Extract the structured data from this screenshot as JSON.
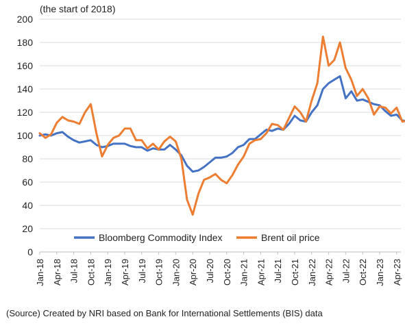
{
  "chart_data": {
    "type": "line",
    "unit_note": "(the start of 2018)",
    "source": "(Source) Created by NRI based on Bank for International Settlements (BIS) data",
    "ylim": [
      0,
      200
    ],
    "yticks": [
      "0",
      "20",
      "40",
      "60",
      "80",
      "100",
      "120",
      "140",
      "160",
      "180",
      "200"
    ],
    "xticks": [
      "Jan-18",
      "Apr-18",
      "Jul-18",
      "Oct-18",
      "Jan-19",
      "Apr-19",
      "Jul-19",
      "Oct-19",
      "Jan-20",
      "Apr-20",
      "Jul-20",
      "Oct-20",
      "Jan-21",
      "Apr-21",
      "Jul-21",
      "Oct-21",
      "Jan-22",
      "Apr-22",
      "Jul-22",
      "Oct-22",
      "Jan-23",
      "Apr-23"
    ],
    "legend_position": "inside-bottom",
    "grid": "horizontal",
    "series": [
      {
        "name": "Bloomberg Commodity Index",
        "color": "#4472C4",
        "points": [
          [
            "2018-01",
            100
          ],
          [
            "2018-02",
            101
          ],
          [
            "2018-03",
            100
          ],
          [
            "2018-04",
            102
          ],
          [
            "2018-05",
            103
          ],
          [
            "2018-06",
            99
          ],
          [
            "2018-07",
            96
          ],
          [
            "2018-08",
            94
          ],
          [
            "2018-09",
            95
          ],
          [
            "2018-10",
            96
          ],
          [
            "2018-11",
            92
          ],
          [
            "2018-12",
            90
          ],
          [
            "2019-01",
            91
          ],
          [
            "2019-02",
            93
          ],
          [
            "2019-03",
            93
          ],
          [
            "2019-04",
            93
          ],
          [
            "2019-05",
            91
          ],
          [
            "2019-06",
            90
          ],
          [
            "2019-07",
            90
          ],
          [
            "2019-08",
            87
          ],
          [
            "2019-09",
            89
          ],
          [
            "2019-10",
            88
          ],
          [
            "2019-11",
            88
          ],
          [
            "2019-12",
            92
          ],
          [
            "2020-01",
            88
          ],
          [
            "2020-02",
            83
          ],
          [
            "2020-03",
            74
          ],
          [
            "2020-04",
            69
          ],
          [
            "2020-05",
            70
          ],
          [
            "2020-06",
            73
          ],
          [
            "2020-07",
            77
          ],
          [
            "2020-08",
            81
          ],
          [
            "2020-09",
            81
          ],
          [
            "2020-10",
            82
          ],
          [
            "2020-11",
            85
          ],
          [
            "2020-12",
            90
          ],
          [
            "2021-01",
            92
          ],
          [
            "2021-02",
            97
          ],
          [
            "2021-03",
            97
          ],
          [
            "2021-04",
            101
          ],
          [
            "2021-05",
            105
          ],
          [
            "2021-06",
            104
          ],
          [
            "2021-07",
            106
          ],
          [
            "2021-08",
            105
          ],
          [
            "2021-09",
            110
          ],
          [
            "2021-10",
            117
          ],
          [
            "2021-11",
            113
          ],
          [
            "2021-12",
            112
          ],
          [
            "2022-01",
            120
          ],
          [
            "2022-02",
            126
          ],
          [
            "2022-03",
            140
          ],
          [
            "2022-04",
            145
          ],
          [
            "2022-05",
            148
          ],
          [
            "2022-06",
            151
          ],
          [
            "2022-07",
            132
          ],
          [
            "2022-08",
            138
          ],
          [
            "2022-09",
            130
          ],
          [
            "2022-10",
            131
          ],
          [
            "2022-11",
            129
          ],
          [
            "2022-12",
            127
          ],
          [
            "2023-01",
            126
          ],
          [
            "2023-02",
            121
          ],
          [
            "2023-03",
            117
          ],
          [
            "2023-04",
            118
          ],
          [
            "2023-05",
            113
          ],
          [
            "2023-06",
            112
          ]
        ]
      },
      {
        "name": "Brent oil price",
        "color": "#ED7D31",
        "points": [
          [
            "2018-01",
            102
          ],
          [
            "2018-02",
            98
          ],
          [
            "2018-03",
            101
          ],
          [
            "2018-04",
            111
          ],
          [
            "2018-05",
            116
          ],
          [
            "2018-06",
            113
          ],
          [
            "2018-07",
            112
          ],
          [
            "2018-08",
            110
          ],
          [
            "2018-09",
            120
          ],
          [
            "2018-10",
            127
          ],
          [
            "2018-11",
            102
          ],
          [
            "2018-12",
            82
          ],
          [
            "2019-01",
            92
          ],
          [
            "2019-02",
            98
          ],
          [
            "2019-03",
            100
          ],
          [
            "2019-04",
            106
          ],
          [
            "2019-05",
            106
          ],
          [
            "2019-06",
            96
          ],
          [
            "2019-07",
            96
          ],
          [
            "2019-08",
            89
          ],
          [
            "2019-09",
            93
          ],
          [
            "2019-10",
            88
          ],
          [
            "2019-11",
            95
          ],
          [
            "2019-12",
            99
          ],
          [
            "2020-01",
            95
          ],
          [
            "2020-02",
            80
          ],
          [
            "2020-03",
            45
          ],
          [
            "2020-04",
            32
          ],
          [
            "2020-05",
            50
          ],
          [
            "2020-06",
            62
          ],
          [
            "2020-07",
            64
          ],
          [
            "2020-08",
            67
          ],
          [
            "2020-09",
            62
          ],
          [
            "2020-10",
            59
          ],
          [
            "2020-11",
            66
          ],
          [
            "2020-12",
            75
          ],
          [
            "2021-01",
            82
          ],
          [
            "2021-02",
            93
          ],
          [
            "2021-03",
            96
          ],
          [
            "2021-04",
            97
          ],
          [
            "2021-05",
            102
          ],
          [
            "2021-06",
            110
          ],
          [
            "2021-07",
            109
          ],
          [
            "2021-08",
            105
          ],
          [
            "2021-09",
            115
          ],
          [
            "2021-10",
            125
          ],
          [
            "2021-11",
            120
          ],
          [
            "2021-12",
            112
          ],
          [
            "2022-01",
            130
          ],
          [
            "2022-02",
            145
          ],
          [
            "2022-03",
            185
          ],
          [
            "2022-04",
            160
          ],
          [
            "2022-05",
            165
          ],
          [
            "2022-06",
            180
          ],
          [
            "2022-07",
            158
          ],
          [
            "2022-08",
            148
          ],
          [
            "2022-09",
            134
          ],
          [
            "2022-10",
            140
          ],
          [
            "2022-11",
            132
          ],
          [
            "2022-12",
            118
          ],
          [
            "2023-01",
            125
          ],
          [
            "2023-02",
            124
          ],
          [
            "2023-03",
            119
          ],
          [
            "2023-04",
            124
          ],
          [
            "2023-05",
            112
          ],
          [
            "2023-06",
            113
          ]
        ]
      }
    ]
  }
}
